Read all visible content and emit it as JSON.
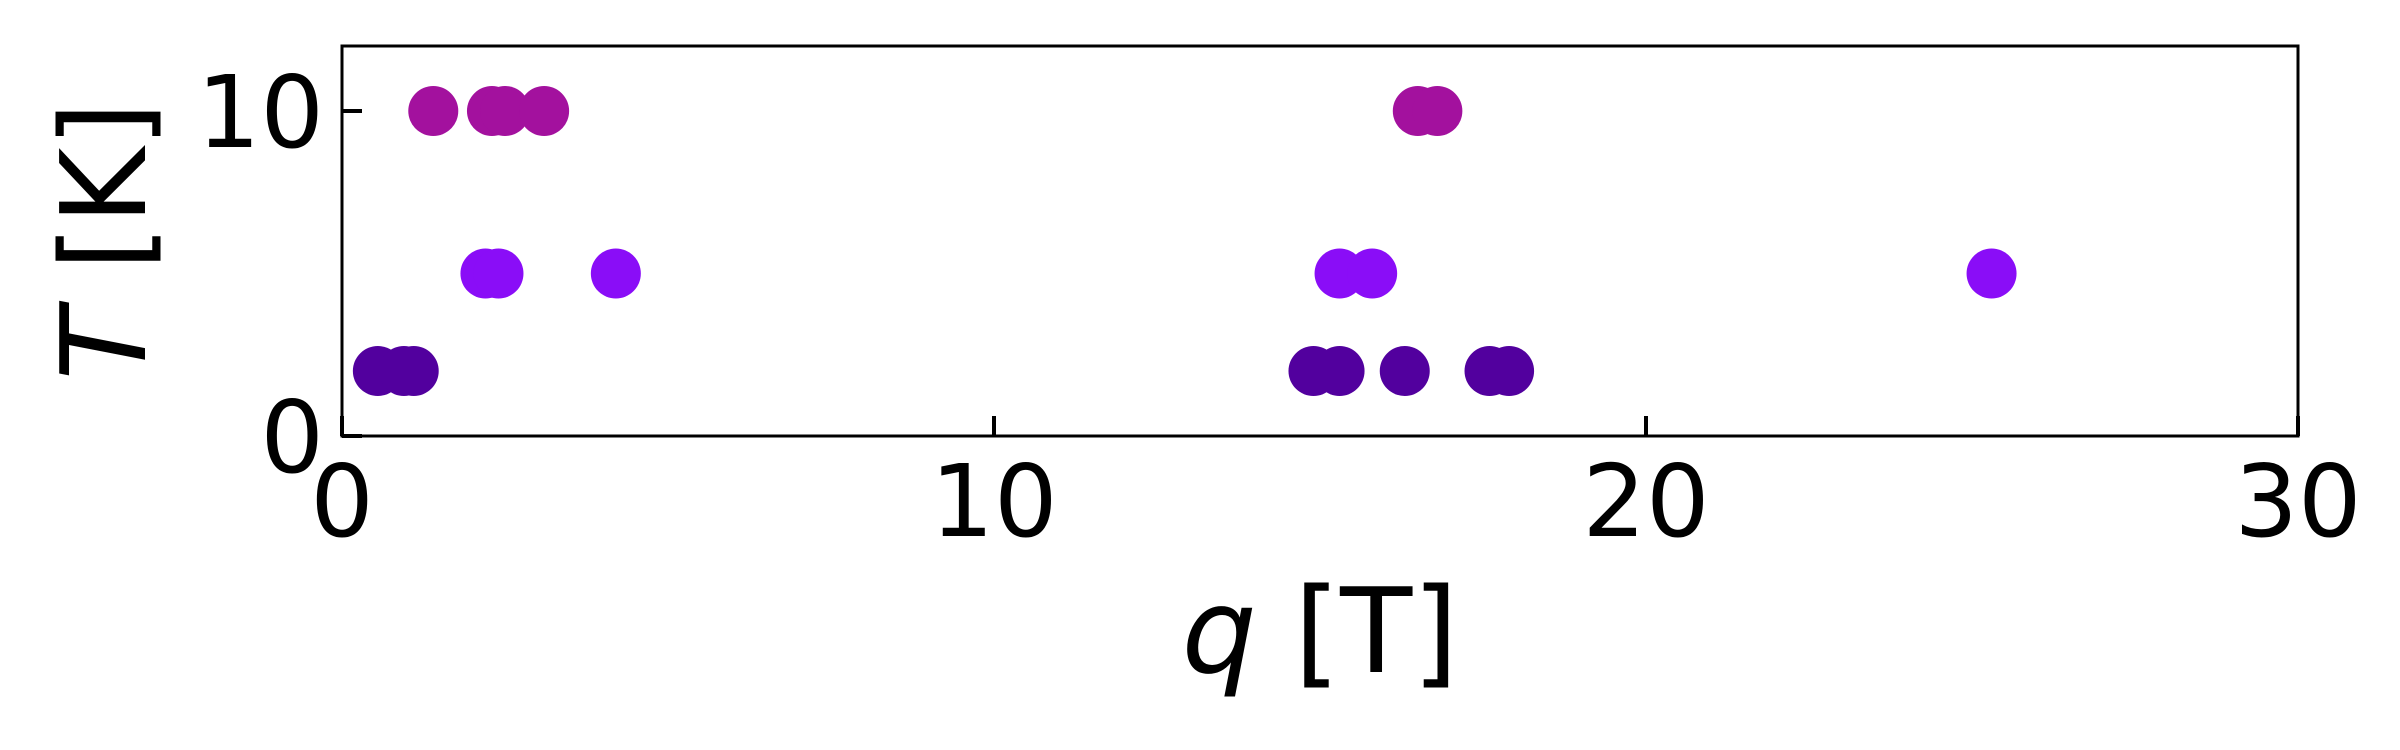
{
  "chart_data": {
    "type": "scatter",
    "xlabel_var": "q",
    "xlabel_unit": "[T]",
    "ylabel_var": "T",
    "ylabel_unit": "[K]",
    "xlim": [
      0,
      30
    ],
    "ylim": [
      0,
      12
    ],
    "xticks": [
      0,
      10,
      20,
      30
    ],
    "xtick_labels": [
      "0",
      "10",
      "20",
      "30"
    ],
    "yticks": [
      0,
      10
    ],
    "ytick_labels": [
      "0",
      "10"
    ],
    "grid": false,
    "series": [
      {
        "color": "#52009e",
        "points": [
          [
            0.55,
            2.0
          ],
          [
            0.95,
            2.0
          ],
          [
            1.1,
            2.0
          ],
          [
            14.9,
            2.0
          ],
          [
            15.3,
            2.0
          ],
          [
            16.3,
            2.0
          ],
          [
            17.6,
            2.0
          ],
          [
            17.9,
            2.0
          ]
        ]
      },
      {
        "color": "#8a0df7",
        "points": [
          [
            2.2,
            5.0
          ],
          [
            2.4,
            5.0
          ],
          [
            4.2,
            5.0
          ],
          [
            15.3,
            5.0
          ],
          [
            15.8,
            5.0
          ],
          [
            25.3,
            5.0
          ]
        ]
      },
      {
        "color": "#a3119e",
        "points": [
          [
            1.4,
            10.0
          ],
          [
            2.3,
            10.0
          ],
          [
            2.5,
            10.0
          ],
          [
            3.1,
            10.0
          ],
          [
            16.5,
            10.0
          ],
          [
            16.8,
            10.0
          ]
        ]
      }
    ]
  }
}
